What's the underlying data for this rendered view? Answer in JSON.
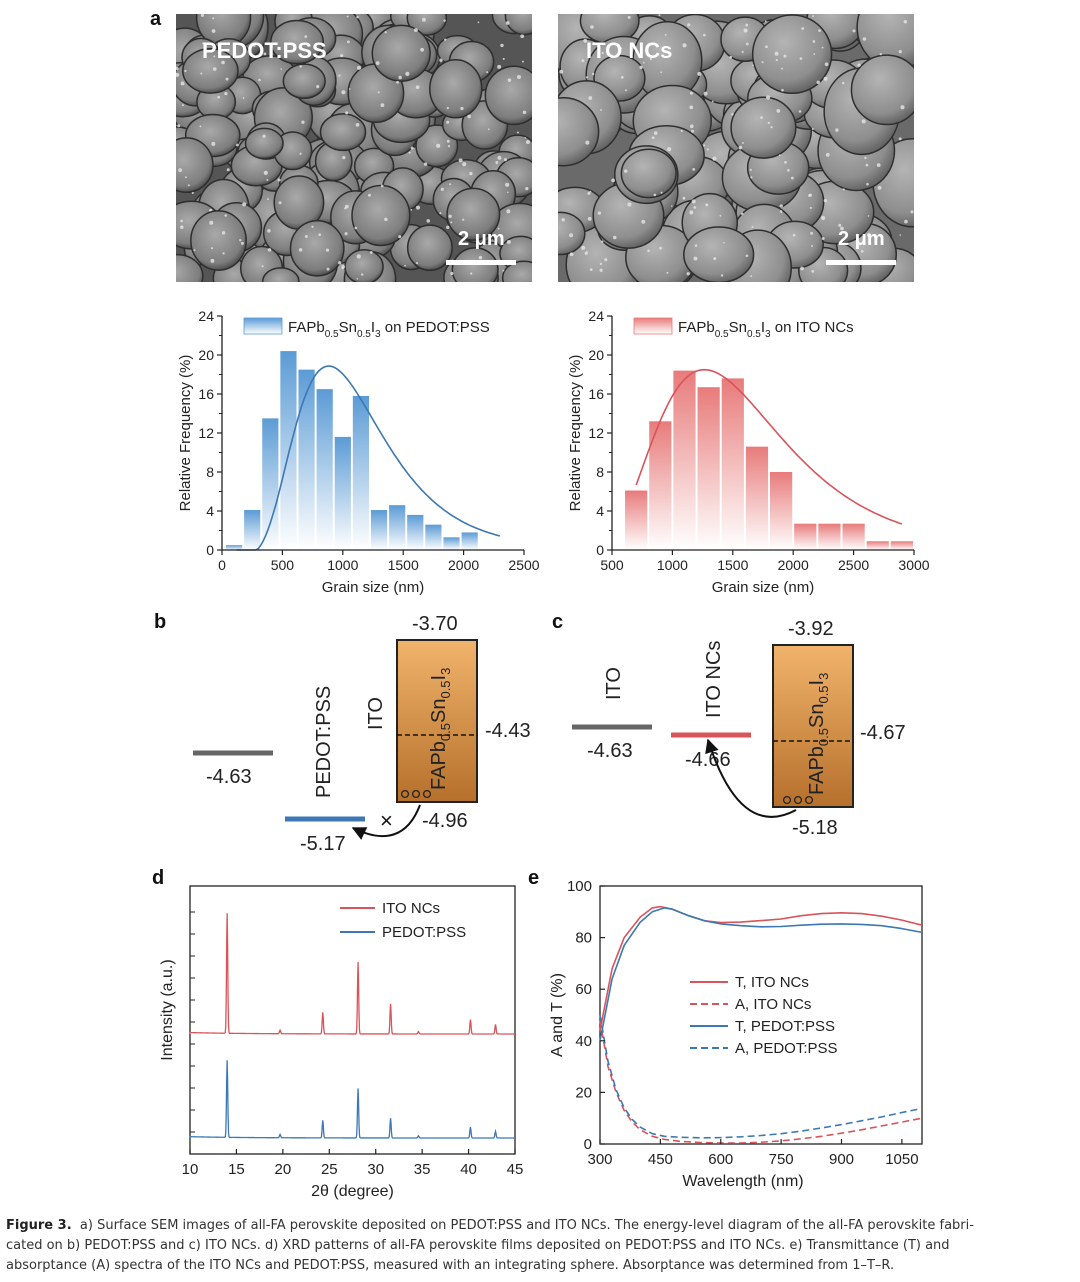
{
  "panel_a": {
    "letter": "a",
    "sem_left": {
      "label": "PEDOT:PSS",
      "scale_bar": "2 μm"
    },
    "sem_right": {
      "label": "ITO NCs",
      "scale_bar": "2 μm"
    }
  },
  "panel_b": {
    "letter": "b",
    "labels": {
      "ito": "ITO",
      "htl": "PEDOT:PSS"
    },
    "values": {
      "cb": "-3.70",
      "fermi": "-4.43",
      "vb": "-4.96",
      "ito": "-4.63",
      "htl": "-5.17"
    },
    "blocked_mark": "×"
  },
  "panel_c": {
    "letter": "c",
    "labels": {
      "ito": "ITO",
      "htl": "ITO NCs"
    },
    "values": {
      "cb": "-3.92",
      "fermi": "-4.67",
      "vb": "-5.18",
      "ito": "-4.63",
      "htl": "-4.66"
    }
  },
  "panel_d_letter": "d",
  "panel_e_letter": "e",
  "chart_data": [
    {
      "id": "hist-pedot",
      "type": "bar",
      "title": "",
      "legend": "FAPb0.5Sn0.5I3 on PEDOT:PSS",
      "xlabel": "Grain size (nm)",
      "ylabel": "Relative Frequency (%)",
      "xlim": [
        0,
        2500
      ],
      "ylim": [
        0,
        24
      ],
      "xticks": [
        0,
        500,
        1000,
        1500,
        2000,
        2500
      ],
      "yticks": [
        0,
        4,
        8,
        12,
        16,
        20,
        24
      ],
      "bin_width": 150,
      "bin_centers": [
        100,
        250,
        400,
        550,
        700,
        850,
        1000,
        1150,
        1300,
        1450,
        1600,
        1750,
        1900,
        2050,
        2200
      ],
      "values": [
        0.5,
        4.1,
        13.5,
        20.4,
        18.5,
        16.5,
        11.6,
        15.8,
        4.1,
        4.6,
        3.6,
        2.6,
        1.3,
        1.8,
        0.0
      ],
      "fit": {
        "type": "lognormal-like",
        "peak_x": 880,
        "peak_y": 19.1,
        "x_range": [
          120,
          2300
        ]
      },
      "color": "#5b9bd5"
    },
    {
      "id": "hist-ito",
      "type": "bar",
      "title": "",
      "legend": "FAPb0.5Sn0.5I3 on ITO NCs",
      "xlabel": "Grain size (nm)",
      "ylabel": "Relative Frequency (%)",
      "xlim": [
        500,
        3000
      ],
      "ylim": [
        0,
        24
      ],
      "xticks": [
        500,
        1000,
        1500,
        2000,
        2500,
        3000
      ],
      "yticks": [
        0,
        4,
        8,
        12,
        16,
        20,
        24
      ],
      "bin_width": 200,
      "bin_centers": [
        700,
        900,
        1100,
        1300,
        1500,
        1700,
        1900,
        2100,
        2300,
        2500,
        2700,
        2900
      ],
      "values": [
        6.1,
        13.2,
        18.4,
        16.7,
        17.6,
        10.6,
        8.0,
        2.7,
        2.7,
        2.7,
        0.9,
        0.9
      ],
      "fit": {
        "peak_x": 1260,
        "peak_y": 18.6,
        "x_range": [
          700,
          2900
        ]
      },
      "color": "#e87b7b"
    },
    {
      "id": "xrd",
      "type": "line",
      "title": "",
      "xlabel": "2θ (degree)",
      "ylabel": "Intensity (a.u.)",
      "xlim": [
        10,
        45
      ],
      "xticks": [
        10,
        15,
        20,
        25,
        30,
        35,
        40,
        45
      ],
      "peaks_2theta": [
        14.0,
        19.7,
        24.3,
        28.1,
        31.6,
        34.6,
        40.2,
        42.9
      ],
      "series": [
        {
          "name": "ITO NCs",
          "color": "#d9545a",
          "peak_heights": [
            100,
            3,
            18,
            60,
            25,
            2,
            12,
            8
          ]
        },
        {
          "name": "PEDOT:PSS",
          "color": "#3c78b4",
          "peak_heights": [
            70,
            3,
            16,
            45,
            18,
            2,
            10,
            6
          ]
        }
      ]
    },
    {
      "id": "optics",
      "type": "line",
      "title": "",
      "xlabel": "Wavelength (nm)",
      "ylabel": "A and T (%)",
      "xlim": [
        300,
        1100
      ],
      "ylim": [
        0,
        100
      ],
      "xticks": [
        300,
        450,
        600,
        750,
        900,
        1050
      ],
      "yticks": [
        0,
        20,
        40,
        60,
        80,
        100
      ],
      "series": [
        {
          "name": "T, ITO NCs",
          "color": "#d9545a",
          "dash": false,
          "x": [
            300,
            330,
            360,
            400,
            430,
            450,
            480,
            520,
            560,
            600,
            650,
            700,
            750,
            800,
            850,
            900,
            950,
            1000,
            1050,
            1100
          ],
          "y": [
            44,
            68,
            80,
            88,
            91.5,
            92,
            91,
            88.5,
            86.5,
            85.8,
            86,
            86.6,
            87.2,
            88.5,
            89.3,
            89.6,
            89.3,
            88.3,
            86.8,
            84.8
          ]
        },
        {
          "name": "A, ITO NCs",
          "color": "#d9545a",
          "dash": true,
          "x": [
            300,
            320,
            340,
            360,
            380,
            400,
            430,
            460,
            500,
            550,
            600,
            650,
            700,
            750,
            800,
            850,
            900,
            950,
            1000,
            1050,
            1100
          ],
          "y": [
            48,
            30,
            20,
            13,
            8.5,
            5.5,
            3,
            1.8,
            1.0,
            0.6,
            0.4,
            0.4,
            0.7,
            1.2,
            2.0,
            3.0,
            4.2,
            5.5,
            7.0,
            8.5,
            10
          ]
        },
        {
          "name": "T, PEDOT:PSS",
          "color": "#3c78b4",
          "dash": false,
          "x": [
            300,
            330,
            360,
            400,
            430,
            460,
            480,
            520,
            560,
            600,
            650,
            700,
            750,
            800,
            850,
            900,
            950,
            1000,
            1050,
            1100
          ],
          "y": [
            40,
            64,
            77,
            86,
            90,
            91.5,
            91,
            88.5,
            86.5,
            85.3,
            84.6,
            84.2,
            84.3,
            84.8,
            85.2,
            85.3,
            85.1,
            84.6,
            83.5,
            82
          ]
        },
        {
          "name": "A, PEDOT:PSS",
          "color": "#3c78b4",
          "dash": true,
          "x": [
            300,
            320,
            340,
            360,
            380,
            400,
            430,
            460,
            500,
            550,
            600,
            650,
            700,
            750,
            800,
            850,
            900,
            950,
            1000,
            1050,
            1100
          ],
          "y": [
            50,
            32,
            21,
            14,
            9.5,
            6.5,
            4,
            3,
            2.6,
            2.4,
            2.5,
            2.8,
            3.3,
            4.0,
            5.0,
            6.2,
            7.5,
            9.0,
            10.5,
            12.2,
            13.8
          ]
        }
      ]
    }
  ],
  "caption": {
    "label": "Figure 3.",
    "line1": "a) Surface SEM images of all-FA perovskite deposited on PEDOT:PSS and ITO NCs. The energy-level diagram of the all-FA perovskite fabri-",
    "line2": "cated on b) PEDOT:PSS and c) ITO NCs. d) XRD patterns of all-FA perovskite films deposited on PEDOT:PSS and ITO NCs. e) Transmittance (T) and",
    "line3": "absorptance (A) spectra of the ITO NCs and PEDOT:PSS, measured with an integrating sphere. Absorptance was determined from 1–T–R."
  }
}
